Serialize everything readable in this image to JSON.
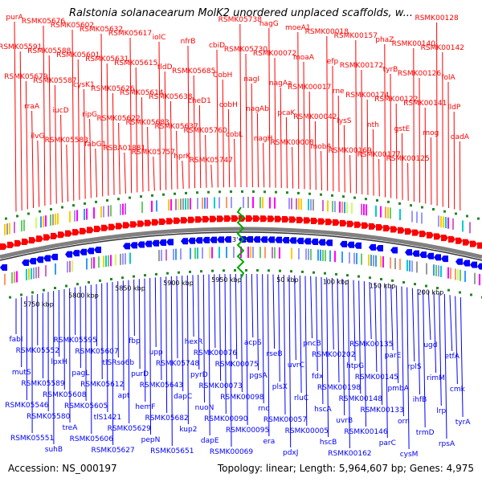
{
  "title": "Ralstonia solanacearum MolK2 unordered unplaced scaffolds, w...",
  "footer": {
    "accession": "Accession: NS_000197",
    "summary": "Topology: linear; Length: 5,964,607 bp; Genes: 4,975"
  },
  "colors": {
    "forward": "#ff0000",
    "reverse": "#0000ff",
    "backbone": "#808080",
    "origin": "#00aa00"
  },
  "origin_labels": [
    "3'",
    "5'"
  ],
  "ticks": [
    "5750 kbp",
    "5800 kbp",
    "5850 kbp",
    "5900 kbp",
    "5950 kbp",
    "50 kbp",
    "100 kbp",
    "150 kbp",
    "200 kbp"
  ],
  "top_labels": [
    "purA",
    "RSMK05591",
    "RSMK05679",
    "rraA",
    "ilvG",
    "RSMK05676",
    "RSMK05588",
    "RSMK05587",
    "iucD",
    "RSMK05583",
    "RSMK05602",
    "RSMK05601",
    "cysK1",
    "ripG",
    "fabG1",
    "RSMK05632",
    "RSMK05631",
    "RSMK05626",
    "RSMK05622",
    "RSBA01881",
    "RSMK05617",
    "RSMK05615",
    "RSMK05614",
    "RSMK05683",
    "RSMK05757",
    "iolC",
    "tldD",
    "RSMK05638",
    "RSMK05637",
    "hprK",
    "nfrB",
    "RSMK05685",
    "cheD1",
    "RSMK05760",
    "RSMK05747",
    "cbiD",
    "CobH",
    "cobH",
    "cobL",
    "RSMK05738",
    "RSMK05730",
    "nagI",
    "nagAb",
    "nagH",
    "nagG",
    "RSMK00072",
    "nagAa",
    "pcaK",
    "RSMK00008",
    "moeA1",
    "moaA",
    "RSMK00017",
    "RSMK00042",
    "mobA",
    "RSMK00018",
    "efp",
    "rne",
    "lysS",
    "RSMK00169",
    "RSMK00157",
    "RSMK00172",
    "RSMK00174",
    "nth",
    "RSMK00177",
    "phaZ",
    "tyrB",
    "RSMK00122",
    "gstE",
    "RSMK00125",
    "RSMK00140",
    "RSMK00126",
    "RSMK00141",
    "mog",
    "RSMK00128",
    "RSMK00142",
    "folA",
    "lldP",
    "dadA"
  ],
  "bottom_labels": [
    "fabI",
    "mutS",
    "RSMK05546",
    "RSMK05551",
    "RSMK05552",
    "RSMK05589",
    "RSMK05580",
    "suhB",
    "lpxH",
    "RSMK05608",
    "treA",
    "RSMK05595",
    "pagL",
    "RSMK05605",
    "RSMK05606",
    "RSMK05607",
    "RSMK05612",
    "tlS1421",
    "RSMK05627",
    "tlSRso6b",
    "apt",
    "RSMK05629",
    "fbp",
    "purD",
    "hemF",
    "pepN",
    "upp",
    "RSMK05643",
    "RSMK05682",
    "RSMK05651",
    "RSMK05748",
    "dapC",
    "kup2",
    "hexR",
    "pyrD",
    "nuoN",
    "dapE",
    "RSMK00076",
    "RSMK00073",
    "RSMK00090",
    "RSMK00069",
    "RSMK00075",
    "RSMK00098",
    "RSMK00095",
    "acpS",
    "pgsA",
    "rnc",
    "era",
    "rseB",
    "plsX",
    "RSMK00057",
    "pdxJ",
    "uvrC",
    "rluC",
    "RSMK00005",
    "pncB",
    "fdx",
    "hscA",
    "hscB",
    "RSMK00202",
    "RSMK00198",
    "uvrB",
    "RSMK00162",
    "htpG",
    "RSMK00148",
    "RSMK00146",
    "RSMK00135",
    "RSMK00145",
    "RSMK00133",
    "parC",
    "parE",
    "pmbA",
    "orn",
    "cysM",
    "rplS",
    "ihfB",
    "trmD",
    "ugd",
    "rimM",
    "lrp",
    "rpsA",
    "etfA",
    "cmk",
    "tyrA"
  ]
}
